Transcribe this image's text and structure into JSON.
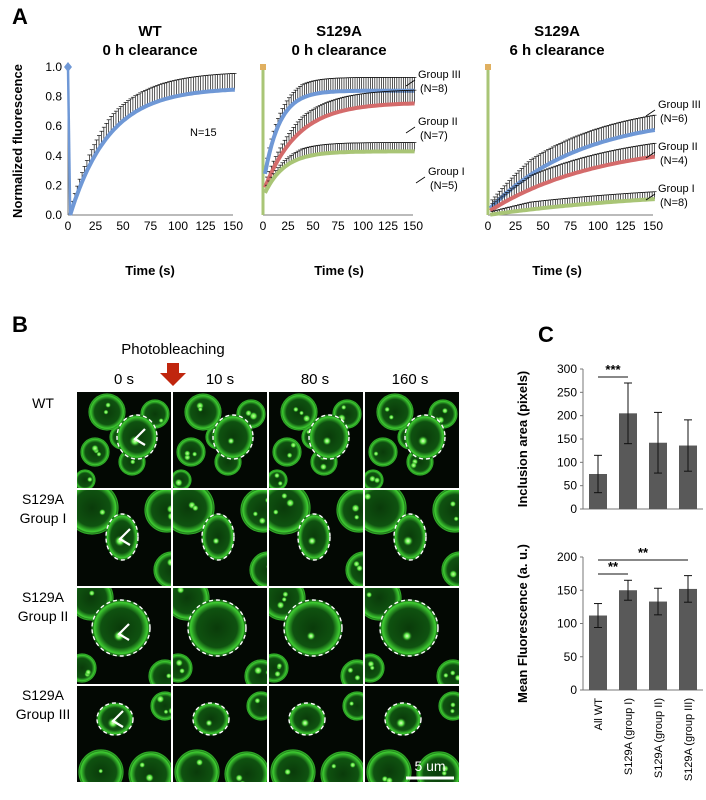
{
  "panels": {
    "a": "A",
    "b": "B",
    "c": "C"
  },
  "colors": {
    "blue": "#6f98d6",
    "red": "#d46b6b",
    "green": "#a9c576",
    "bar": "#595959",
    "err": "#111111",
    "arrow": "#c0260e",
    "cell": "#37c427"
  },
  "panel_b": {
    "photobleaching": "Photobleaching",
    "times": [
      "0 s",
      "10 s",
      "80 s",
      "160 s"
    ],
    "rows": [
      {
        "line1": "WT",
        "line2": ""
      },
      {
        "line1": "S129A",
        "line2": "Group I"
      },
      {
        "line1": "S129A",
        "line2": "Group II"
      },
      {
        "line1": "S129A",
        "line2": "Group III"
      }
    ],
    "scale_bar": "5 um"
  },
  "chart_data": [
    {
      "type": "line",
      "title": "WT",
      "subtitle": "0 h clearance",
      "ylabel": "Normalized fluorescence",
      "xlabel": "Time (s)",
      "xlim": [
        0,
        150
      ],
      "ylim": [
        0,
        1.0
      ],
      "xticks": [
        "0",
        "25",
        "50",
        "75",
        "100",
        "125",
        "150"
      ],
      "yticks": [
        "0.0",
        "0.2",
        "0.4",
        "0.6",
        "0.8",
        "1.0"
      ],
      "series": [
        {
          "name": "",
          "color": "blue",
          "label": "N=15",
          "plateau": 0.86,
          "k": 0.028,
          "err": 0.11,
          "x": [
            0,
            2,
            25,
            50,
            75,
            100,
            125,
            150
          ],
          "y": [
            1.0,
            0.0,
            0.5,
            0.67,
            0.76,
            0.8,
            0.83,
            0.86
          ]
        }
      ]
    },
    {
      "type": "line",
      "title": "S129A",
      "subtitle": "0 h clearance",
      "ylabel": "",
      "xlabel": "Time (s)",
      "xlim": [
        0,
        150
      ],
      "ylim": [
        0,
        1.0
      ],
      "xticks": [
        "0",
        "25",
        "50",
        "75",
        "100",
        "125",
        "150"
      ],
      "yticks": [],
      "series": [
        {
          "name": "Group III",
          "color": "blue",
          "label": "Group III",
          "n_label": "(N=8)",
          "plateau": 0.84,
          "k": 0.065,
          "err": 0.09,
          "x": [
            0,
            25,
            50,
            75,
            100,
            150
          ],
          "y": [
            0.2,
            0.72,
            0.83,
            0.87,
            0.86,
            0.84
          ]
        },
        {
          "name": "Group II",
          "color": "red",
          "label": "Group II",
          "n_label": "(N=7)",
          "plateau": 0.76,
          "k": 0.03,
          "err": 0.09,
          "x": [
            0,
            25,
            50,
            75,
            100,
            150
          ],
          "y": [
            0.15,
            0.52,
            0.63,
            0.7,
            0.73,
            0.76
          ]
        },
        {
          "name": "Group I",
          "color": "green",
          "label": "Group I",
          "n_label": "(N=5)",
          "plateau": 0.43,
          "k": 0.05,
          "err": 0.06,
          "x": [
            0,
            25,
            50,
            75,
            100,
            150
          ],
          "y": [
            0.12,
            0.34,
            0.39,
            0.41,
            0.42,
            0.43
          ]
        }
      ]
    },
    {
      "type": "line",
      "title": "S129A",
      "subtitle": "6 h clearance",
      "ylabel": "",
      "xlabel": "Time (s)",
      "xlim": [
        0,
        150
      ],
      "ylim": [
        0,
        1.0
      ],
      "xticks": [
        "0",
        "25",
        "50",
        "75",
        "100",
        "125",
        "150"
      ],
      "yticks": [],
      "series": [
        {
          "name": "Group III",
          "color": "blue",
          "label": "Group III",
          "n_label": "(N=6)",
          "plateau": 0.68,
          "k": 0.012,
          "err": 0.1,
          "x": [
            0,
            25,
            50,
            75,
            100,
            150
          ],
          "y": [
            0.03,
            0.28,
            0.42,
            0.52,
            0.58,
            0.68
          ]
        },
        {
          "name": "Group II",
          "color": "red",
          "label": "Group II",
          "n_label": "(N=4)",
          "plateau": 0.5,
          "k": 0.01,
          "err": 0.09,
          "x": [
            0,
            25,
            50,
            75,
            100,
            150
          ],
          "y": [
            0.02,
            0.2,
            0.3,
            0.38,
            0.43,
            0.5
          ]
        },
        {
          "name": "Group I",
          "color": "green",
          "label": "Group I",
          "n_label": "(N=8)",
          "plateau": 0.18,
          "k": 0.006,
          "err": 0.05,
          "x": [
            0,
            25,
            50,
            75,
            100,
            150
          ],
          "y": [
            0.0,
            0.05,
            0.09,
            0.12,
            0.15,
            0.18
          ]
        }
      ]
    },
    {
      "type": "bar",
      "title": "",
      "ylabel": "Inclusion area  (pixels)",
      "categories": [
        "All WT",
        "S129A (group I)",
        "S129A (group II)",
        "S129A (group III)"
      ],
      "values": [
        75,
        205,
        142,
        136
      ],
      "errors": [
        40,
        65,
        65,
        55
      ],
      "ylim": [
        0,
        300
      ],
      "yticks": [
        "0",
        "50",
        "100",
        "150",
        "200",
        "250",
        "300"
      ],
      "significance": [
        {
          "from": 0,
          "to": 1,
          "label": "***"
        }
      ]
    },
    {
      "type": "bar",
      "title": "",
      "ylabel": "Mean Fluorescence (a. u.)",
      "categories": [
        "All WT",
        "S129A (group I)",
        "S129A (group II)",
        "S129A (group III)"
      ],
      "values": [
        112,
        150,
        133,
        152
      ],
      "errors": [
        18,
        15,
        20,
        20
      ],
      "ylim": [
        0,
        200
      ],
      "yticks": [
        "0",
        "50",
        "100",
        "150",
        "200"
      ],
      "significance": [
        {
          "from": 0,
          "to": 1,
          "label": "**"
        },
        {
          "from": 0,
          "to": 3,
          "label": "**"
        }
      ]
    }
  ]
}
